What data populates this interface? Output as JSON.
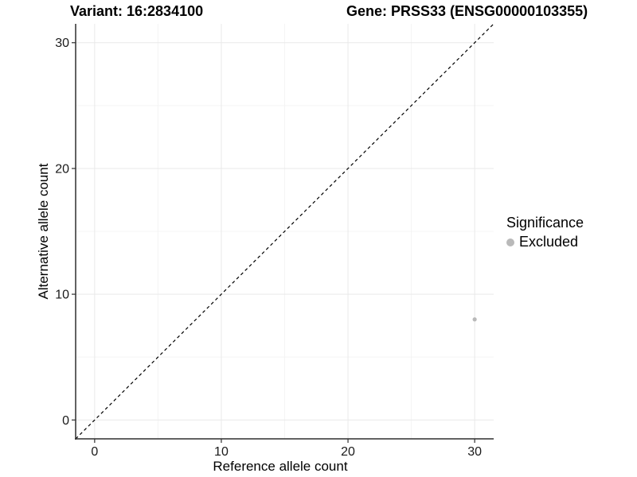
{
  "header": {
    "variant_title": "Variant: 16:2834100",
    "gene_title": "Gene: PRSS33 (ENSG00000103355)"
  },
  "chart_data": {
    "type": "scatter",
    "title": "Variant: 16:2834100   Gene: PRSS33 (ENSG00000103355)",
    "xlabel": "Reference allele count",
    "ylabel": "Alternative allele count",
    "xlim": [
      -1.5,
      31.5
    ],
    "ylim": [
      -1.5,
      31.5
    ],
    "xticks": [
      0,
      10,
      20,
      30
    ],
    "yticks": [
      0,
      10,
      20,
      30
    ],
    "xminor": [
      5,
      15,
      25
    ],
    "yminor": [
      5,
      15,
      25
    ],
    "grid": "major and minor, light gray on white",
    "identity_line": {
      "slope": 1,
      "intercept": 0,
      "style": "dashed",
      "color": "#000000"
    },
    "series": [
      {
        "name": "Excluded",
        "points": [
          {
            "x": 30,
            "y": 8
          }
        ],
        "color": "#b9b9b9"
      }
    ],
    "legend": {
      "title": "Significance",
      "position": "right",
      "entries": [
        {
          "label": "Excluded",
          "color": "#b9b9b9"
        }
      ]
    },
    "colors": {
      "background": "#ffffff",
      "axis_line": "#2f2f2f",
      "grid_major": "#e9e9e9",
      "grid_minor": "#f4f4f4",
      "point": "#b9b9b9"
    }
  }
}
